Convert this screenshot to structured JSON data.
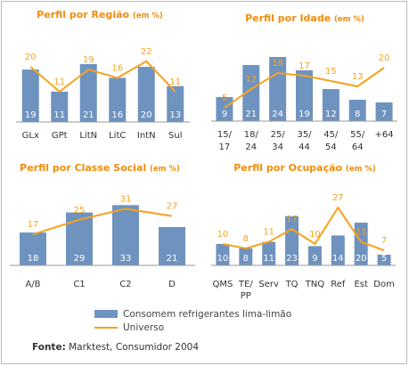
{
  "colors": {
    "bar": "#6f93bf",
    "line": "#f7a21c",
    "title": "#f08c0a",
    "axis": "#9a9a9a"
  },
  "legend": {
    "bars": "Consomem refrigerantes lima-limão",
    "line": "Universo"
  },
  "source": {
    "label": "Fonte:",
    "text": " Marktest, Consumidor 2004"
  },
  "chart_data": [
    {
      "type": "bar",
      "title": "Perfil por Região",
      "title_unit": "(em %)",
      "categories": [
        "GLx",
        "GPt",
        "LitN",
        "LitC",
        "IntN",
        "Sul"
      ],
      "series": [
        {
          "name": "Consomem refrigerantes lima-limão",
          "type": "bar",
          "values": [
            19,
            11,
            21,
            16,
            20,
            13
          ]
        },
        {
          "name": "Universo",
          "type": "line",
          "values": [
            20,
            11,
            19,
            16,
            22,
            11
          ]
        }
      ],
      "ylim": [
        0,
        30
      ]
    },
    {
      "type": "bar",
      "title": "Perfil por Idade",
      "title_unit": "(em %)",
      "categories": [
        [
          "15/",
          "17"
        ],
        [
          "18/",
          "24"
        ],
        [
          "25/",
          "34"
        ],
        [
          "35/",
          "44"
        ],
        [
          "45/",
          "54"
        ],
        [
          "55/",
          "64"
        ],
        [
          "+64"
        ]
      ],
      "series": [
        {
          "name": "Consomem refrigerantes lima-limão",
          "type": "bar",
          "values": [
            9,
            21,
            24,
            19,
            12,
            8,
            7
          ]
        },
        {
          "name": "Universo",
          "type": "line",
          "values": [
            5,
            12,
            18,
            17,
            15,
            13,
            20
          ]
        }
      ],
      "ylim": [
        0,
        30
      ]
    },
    {
      "type": "bar",
      "title": "Perfil por Classe Social",
      "title_unit": "(em %)",
      "categories": [
        "A/B",
        "C1",
        "C2",
        "D"
      ],
      "series": [
        {
          "name": "Consomem refrigerantes lima-limão",
          "type": "bar",
          "values": [
            18,
            29,
            33,
            21
          ]
        },
        {
          "name": "Universo",
          "type": "line",
          "values": [
            17,
            25,
            31,
            27
          ]
        }
      ],
      "ylim": [
        0,
        40
      ]
    },
    {
      "type": "bar",
      "title": "Perfil por Ocupação",
      "title_unit": "(em %)",
      "categories": [
        [
          "QMS"
        ],
        [
          "TE/",
          "PP"
        ],
        [
          "Serv"
        ],
        [
          "TQ"
        ],
        [
          "TNQ"
        ],
        [
          "Ref"
        ],
        [
          "Est"
        ],
        [
          "Dom"
        ]
      ],
      "series": [
        {
          "name": "Consomem refrigerantes lima-limão",
          "type": "bar",
          "values": [
            10,
            8,
            11,
            23,
            9,
            14,
            20,
            5
          ]
        },
        {
          "name": "Universo",
          "type": "line",
          "values": [
            10,
            8,
            11,
            17,
            10,
            27,
            11,
            7
          ]
        }
      ],
      "ylim": [
        0,
        30
      ]
    }
  ]
}
